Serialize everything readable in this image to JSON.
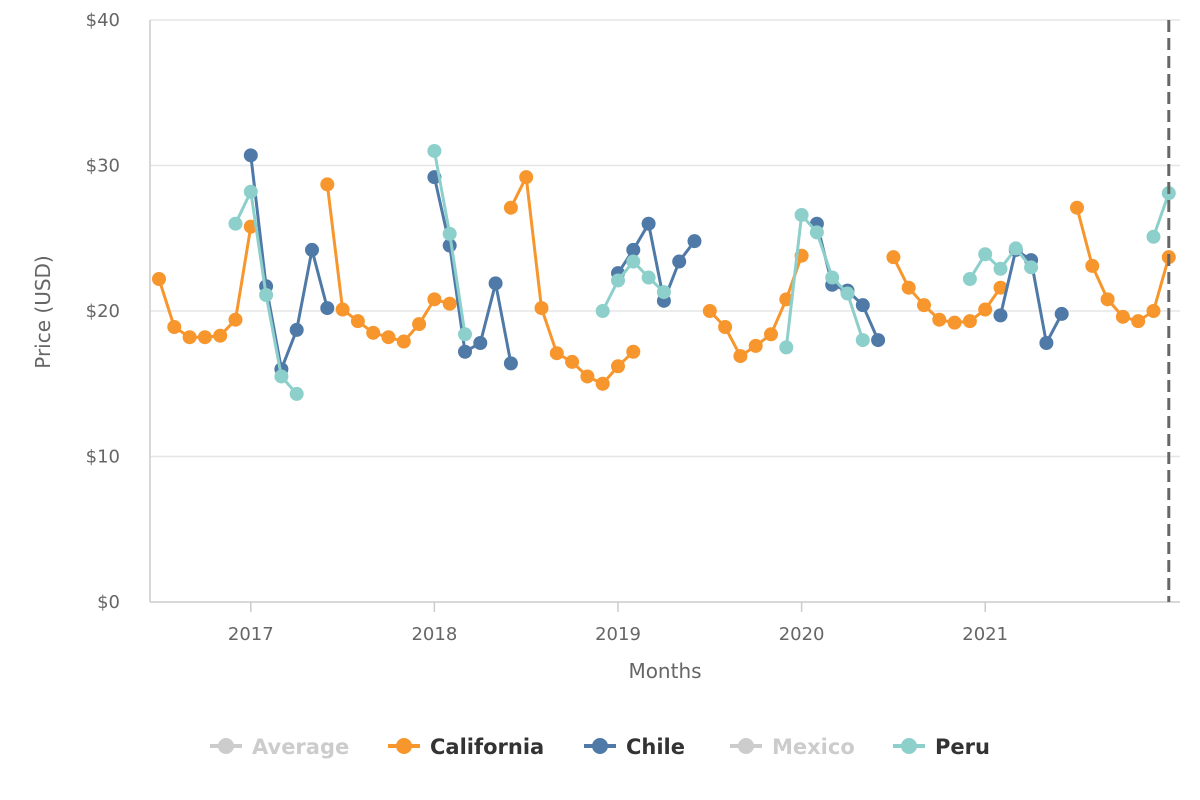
{
  "chart_data": {
    "type": "line",
    "title": "",
    "xlabel": "Months",
    "ylabel": "Price (USD)",
    "ylim": [
      0,
      40
    ],
    "y_ticks": [
      0,
      10,
      20,
      30,
      40
    ],
    "y_tick_labels": [
      "$0",
      "$10",
      "$20",
      "$30",
      "$40"
    ],
    "x_tick_labels": [
      "2017",
      "2018",
      "2019",
      "2020",
      "2021"
    ],
    "x_range": [
      "2016-07",
      "2021-12"
    ],
    "grid": "horizontal",
    "legend_position": "bottom",
    "series": [
      {
        "name": "Average",
        "color": "#cccccc",
        "hidden": true,
        "points": []
      },
      {
        "name": "California",
        "color": "#f7962d",
        "hidden": false,
        "points": [
          [
            "2016-07",
            22.2
          ],
          [
            "2016-08",
            18.9
          ],
          [
            "2016-09",
            18.2
          ],
          [
            "2016-10",
            18.2
          ],
          [
            "2016-11",
            18.3
          ],
          [
            "2016-12",
            19.4
          ],
          [
            "2017-01",
            25.8
          ],
          null,
          [
            "2017-06",
            28.7
          ],
          [
            "2017-07",
            20.1
          ],
          [
            "2017-08",
            19.3
          ],
          [
            "2017-09",
            18.5
          ],
          [
            "2017-10",
            18.2
          ],
          [
            "2017-11",
            17.9
          ],
          [
            "2017-12",
            19.1
          ],
          [
            "2018-01",
            20.8
          ],
          [
            "2018-02",
            20.5
          ],
          null,
          [
            "2018-06",
            27.1
          ],
          [
            "2018-07",
            29.2
          ],
          [
            "2018-08",
            20.2
          ],
          [
            "2018-09",
            17.1
          ],
          [
            "2018-10",
            16.5
          ],
          [
            "2018-11",
            15.5
          ],
          [
            "2018-12",
            15.0
          ],
          [
            "2019-01",
            16.2
          ],
          [
            "2019-02",
            17.2
          ],
          null,
          [
            "2019-07",
            20.0
          ],
          [
            "2019-08",
            18.9
          ],
          [
            "2019-09",
            16.9
          ],
          [
            "2019-10",
            17.6
          ],
          [
            "2019-11",
            18.4
          ],
          [
            "2019-12",
            20.8
          ],
          [
            "2020-01",
            23.8
          ],
          null,
          [
            "2020-07",
            23.7
          ],
          [
            "2020-08",
            21.6
          ],
          [
            "2020-09",
            20.4
          ],
          [
            "2020-10",
            19.4
          ],
          [
            "2020-11",
            19.2
          ],
          [
            "2020-12",
            19.3
          ],
          [
            "2021-01",
            20.1
          ],
          [
            "2021-02",
            21.6
          ],
          null,
          [
            "2021-07",
            27.1
          ],
          [
            "2021-08",
            23.1
          ],
          [
            "2021-09",
            20.8
          ],
          [
            "2021-10",
            19.6
          ],
          [
            "2021-11",
            19.3
          ],
          [
            "2021-12",
            20.0
          ],
          [
            "2022-01",
            23.7
          ]
        ]
      },
      {
        "name": "Chile",
        "color": "#4f79a7",
        "hidden": false,
        "points": [
          [
            "2017-01",
            30.7
          ],
          [
            "2017-02",
            21.7
          ],
          [
            "2017-03",
            16.0
          ],
          [
            "2017-04",
            18.7
          ],
          [
            "2017-05",
            24.2
          ],
          [
            "2017-06",
            20.2
          ],
          null,
          [
            "2018-01",
            29.2
          ],
          [
            "2018-02",
            24.5
          ],
          [
            "2018-03",
            17.2
          ],
          [
            "2018-04",
            17.8
          ],
          [
            "2018-05",
            21.9
          ],
          [
            "2018-06",
            16.4
          ],
          null,
          [
            "2019-01",
            22.6
          ],
          [
            "2019-02",
            24.2
          ],
          [
            "2019-03",
            26.0
          ],
          [
            "2019-04",
            20.7
          ],
          [
            "2019-05",
            23.4
          ],
          [
            "2019-06",
            24.8
          ],
          null,
          [
            "2020-02",
            26.0
          ],
          [
            "2020-03",
            21.8
          ],
          [
            "2020-04",
            21.4
          ],
          [
            "2020-05",
            20.4
          ],
          [
            "2020-06",
            18.0
          ],
          null,
          [
            "2021-02",
            19.7
          ],
          [
            "2021-03",
            24.2
          ],
          [
            "2021-04",
            23.5
          ],
          [
            "2021-05",
            17.8
          ],
          [
            "2021-06",
            19.8
          ]
        ]
      },
      {
        "name": "Mexico",
        "color": "#cccccc",
        "hidden": true,
        "points": []
      },
      {
        "name": "Peru",
        "color": "#8ccfcb",
        "hidden": false,
        "points": [
          [
            "2016-12",
            26.0
          ],
          [
            "2017-01",
            28.2
          ],
          [
            "2017-02",
            21.1
          ],
          [
            "2017-03",
            15.5
          ],
          [
            "2017-04",
            14.3
          ],
          null,
          [
            "2018-01",
            31.0
          ],
          [
            "2018-02",
            25.3
          ],
          [
            "2018-03",
            18.4
          ],
          null,
          [
            "2018-12",
            20.0
          ],
          [
            "2019-01",
            22.1
          ],
          [
            "2019-02",
            23.4
          ],
          [
            "2019-03",
            22.3
          ],
          [
            "2019-04",
            21.3
          ],
          null,
          [
            "2019-12",
            17.5
          ],
          [
            "2020-01",
            26.6
          ],
          [
            "2020-02",
            25.4
          ],
          [
            "2020-03",
            22.3
          ],
          [
            "2020-04",
            21.2
          ],
          [
            "2020-05",
            18.0
          ],
          null,
          [
            "2020-12",
            22.2
          ],
          [
            "2021-01",
            23.9
          ],
          [
            "2021-02",
            22.9
          ],
          [
            "2021-03",
            24.3
          ],
          [
            "2021-04",
            23.0
          ],
          null,
          [
            "2021-12",
            25.1
          ],
          [
            "2022-01",
            28.1
          ]
        ]
      }
    ]
  }
}
